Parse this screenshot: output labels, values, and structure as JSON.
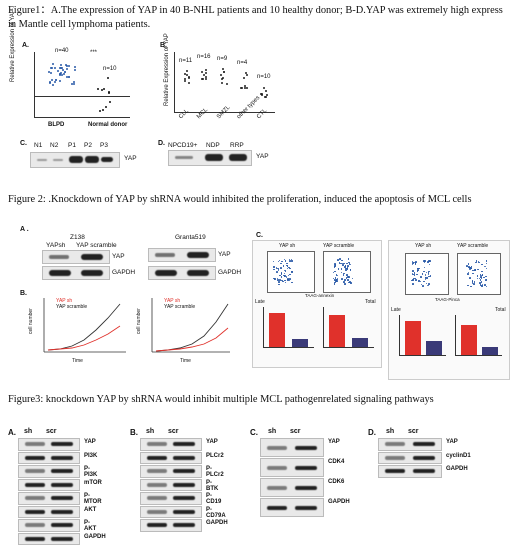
{
  "fig1": {
    "caption": "Figure1：A.The expression of YAP in 40 B-NHL patients and 10 healthy donor; B-D.YAP was extremely high express in Mantle cell lymphoma patients.",
    "panelA": {
      "label": "A.",
      "ylabel": "Relative Expression of YAP",
      "n1": "n=40",
      "n2": "n=10",
      "sig": "***",
      "x1": "BLPD",
      "x2": "Normal donor"
    },
    "panelB": {
      "label": "B.",
      "ylabel": "Relative Expression of YAP",
      "ns": [
        "n=11",
        "n=16",
        "n=9",
        "n=4",
        "n=10"
      ],
      "xs": [
        "CLL",
        "MCL",
        "SMZL",
        "other types",
        "CTL"
      ]
    },
    "panelC": {
      "label": "C.",
      "lanes": [
        "N1",
        "N2",
        "P1",
        "P2",
        "P3"
      ],
      "protein": "YAP"
    },
    "panelD": {
      "label": "D.",
      "lanes": [
        "NPCD19+",
        "NDP",
        "RRP"
      ],
      "protein": "YAP"
    }
  },
  "fig2": {
    "caption": "Figure 2: .Knockdown of YAP by shRNA would inhibited the proliferation, induced the apoptosis of MCL cells",
    "panelA": {
      "label": "A .",
      "cell1": "Z138",
      "cell2": "Granta519",
      "lane1": "YAPsh",
      "lane2": "YAP scramble",
      "p1": "YAP",
      "p2": "GAPDH"
    },
    "panelB": {
      "label": "B.",
      "leg1": "YAP sh",
      "leg2": "YAP scramble",
      "ylabel": "cell number",
      "xlabel": "Time"
    },
    "panelC": {
      "label": "C.",
      "t1": "YAP sh",
      "t2": "YAP scramble",
      "axis": "TAAG-annexin",
      "late": "Late",
      "total": "Total",
      "t3": "YAP sh",
      "t4": "YAP scramble",
      "axis2": "TAAG-Pinca",
      "late2": "Late",
      "total2": "Total"
    }
  },
  "fig3": {
    "caption": "Figure3: knockdown YAP by shRNA would inhibit multiple MCL pathogenrelated signaling pathways",
    "A": {
      "label": "A.",
      "sh": "sh",
      "scr": "scr",
      "proteins": [
        "YAP",
        "PI3K",
        "P-PI3K",
        "mTOR",
        "P-MTOR",
        "AKT",
        "P-AKT",
        "GAPDH"
      ]
    },
    "B": {
      "label": "B.",
      "sh": "sh",
      "scr": "scr",
      "proteins": [
        "YAP",
        "PLCr2",
        "P-PLCr2",
        "P-BTK",
        "P-CD19",
        "P-CD79A",
        "GAPDH"
      ]
    },
    "C": {
      "label": "C.",
      "sh": "sh",
      "scr": "scr",
      "proteins": [
        "YAP",
        "CDK4",
        "CDK6",
        "GAPDH"
      ]
    },
    "D": {
      "label": "D.",
      "sh": "sh",
      "scr": "scr",
      "proteins": [
        "YAP",
        "cyclinD1",
        "GAPDH"
      ]
    }
  }
}
